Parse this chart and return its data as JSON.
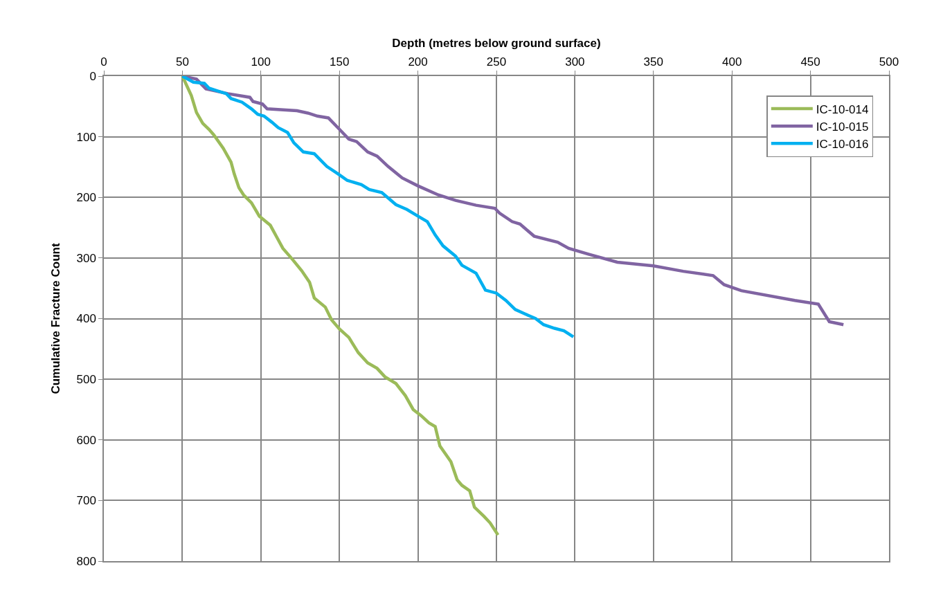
{
  "chart_data": {
    "type": "line",
    "xlabel": "Depth (metres below ground surface)",
    "ylabel": "Cumulative Fracture Count",
    "xlim": [
      0,
      500
    ],
    "xticks": [
      0,
      50,
      100,
      150,
      200,
      250,
      300,
      350,
      400,
      450,
      500
    ],
    "ylim": [
      800,
      0
    ],
    "yticks": [
      0,
      100,
      200,
      300,
      400,
      500,
      600,
      700,
      800
    ],
    "grid": true,
    "legend": "top right",
    "marker": "none",
    "line_style": "solid",
    "series": [
      {
        "name": "IC-10-014",
        "color": "#9bbb59",
        "x": [
          50,
          55.7,
          59,
          63,
          67,
          70,
          76,
          81,
          83,
          86,
          89,
          94,
          99,
          106,
          110,
          114,
          120,
          126,
          131,
          134,
          141,
          145,
          150,
          156,
          162,
          168,
          174,
          179,
          186,
          192,
          197,
          202,
          207,
          211,
          214,
          221,
          225,
          228,
          233,
          236,
          242,
          246,
          251
        ],
        "values": [
          0,
          32,
          60,
          78,
          88,
          97,
          119,
          142,
          161,
          184,
          196,
          209,
          231,
          246,
          265,
          284,
          302,
          321,
          340,
          366,
          381,
          402,
          417,
          431,
          456,
          473,
          482,
          496,
          507,
          527,
          550,
          560,
          572,
          578,
          610,
          636,
          666,
          675,
          684,
          711,
          726,
          737,
          757
        ]
      },
      {
        "name": "IC-10-015",
        "color": "#8064a2",
        "x": [
          50,
          59,
          65,
          79,
          93,
          95,
          101,
          104,
          123,
          130,
          136,
          143,
          149,
          156,
          161,
          168,
          174,
          181,
          190,
          200,
          213,
          224,
          237,
          249,
          252,
          260,
          265,
          274,
          289,
          296,
          309,
          327,
          350,
          369,
          388,
          395,
          406,
          440,
          455,
          462,
          471
        ],
        "values": [
          0,
          5,
          21,
          29,
          35,
          42,
          46,
          54,
          57,
          61,
          66,
          69,
          85,
          104,
          108,
          125,
          132,
          149,
          168,
          181,
          196,
          205,
          213,
          218,
          226,
          240,
          244,
          264,
          274,
          284,
          294,
          307,
          313,
          322,
          329,
          344,
          354,
          370,
          376,
          405,
          410
        ]
      },
      {
        "name": "IC-10-016",
        "color": "#00b0f0",
        "x": [
          50,
          57,
          64,
          67,
          72,
          78,
          81,
          88,
          94,
          98,
          102,
          107,
          111,
          117,
          121,
          127,
          134,
          142,
          149,
          155,
          164,
          169,
          177,
          186,
          193,
          200,
          206,
          211,
          216,
          224,
          228,
          237,
          243,
          250,
          256,
          262,
          268,
          275,
          280,
          287,
          293,
          299
        ],
        "values": [
          0,
          10,
          12,
          20,
          24,
          29,
          37,
          43,
          54,
          63,
          66,
          76,
          85,
          93,
          110,
          125,
          128,
          149,
          161,
          172,
          179,
          187,
          192,
          212,
          220,
          231,
          240,
          262,
          280,
          297,
          312,
          325,
          353,
          358,
          370,
          385,
          392,
          400,
          410,
          416,
          420,
          430
        ]
      }
    ]
  }
}
